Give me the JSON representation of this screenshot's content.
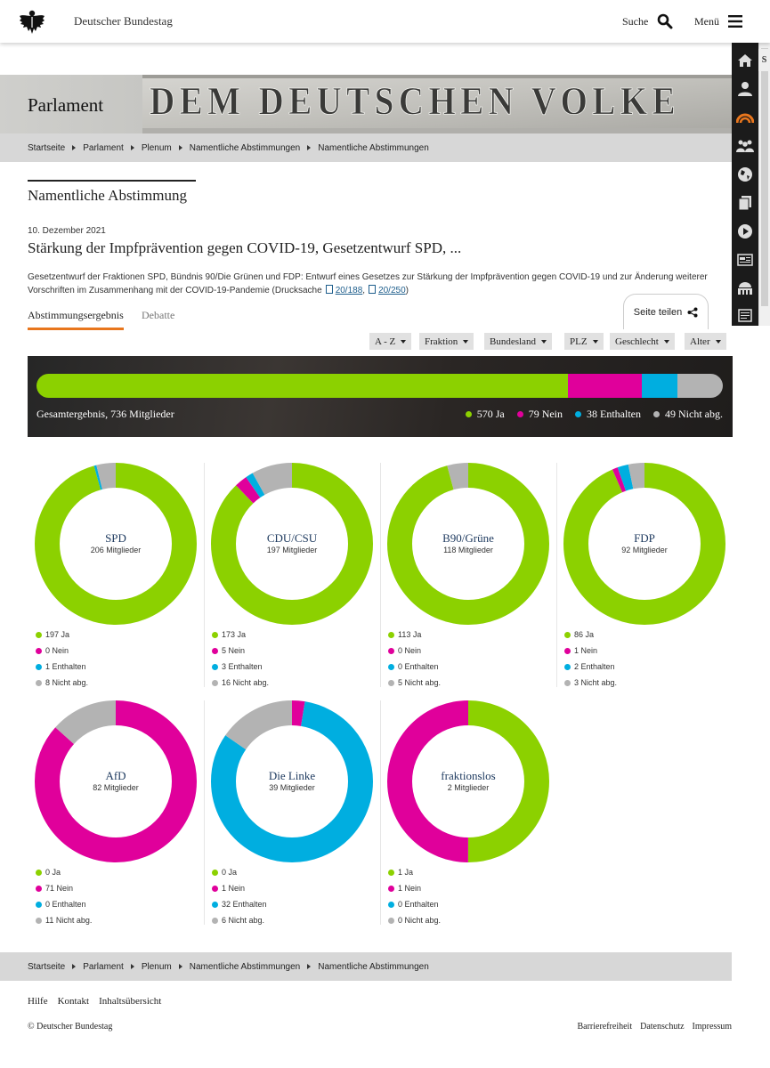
{
  "header": {
    "site_name": "Deutscher Bundestag",
    "search_label": "Suche",
    "menu_label": "Menü"
  },
  "side_tools": [
    "home-icon",
    "person-icon",
    "plenary-icon",
    "group-icon",
    "globe-icon",
    "documents-icon",
    "play-icon",
    "media-icon",
    "building-icon",
    "text-icon"
  ],
  "side_peek": "S",
  "banner": {
    "title": "Parlament",
    "inscription": "DEM DEUTSCHEN VOLKE"
  },
  "breadcrumb": [
    "Startseite",
    "Parlament",
    "Plenum",
    "Namentliche Abstimmungen",
    "Namentliche Abstimmungen"
  ],
  "section_title": "Namentliche Abstimmung",
  "vote": {
    "date": "10. Dezember 2021",
    "title": "Stärkung der Impfprävention gegen COVID-19, Gesetzentwurf SPD, ...",
    "description": "Gesetzentwurf der Fraktionen SPD, Bündnis 90/Die Grünen und FDP: Entwurf eines Gesetzes zur Stärkung der Impfprävention gegen COVID-19 und zur Änderung weiterer Vorschriften im Zusammenhang mit der COVID-19-Pandemie (Drucksache",
    "doc1": "20/188",
    "doc_sep": ",",
    "doc2": "20/250",
    "desc_end": ")"
  },
  "tabs": {
    "result": "Abstimmungsergebnis",
    "debate": "Debatte",
    "share": "Seite teilen"
  },
  "filters": [
    "A - Z",
    "Fraktion",
    "Bundesland",
    "PLZ",
    "Geschlecht",
    "Alter"
  ],
  "colors": {
    "ja": "#8cd100",
    "nein": "#e0009b",
    "enthalten": "#00aee0",
    "nicht": "#b3b3b3"
  },
  "overall": {
    "label": "Gesamtergebnis, 736 Mitglieder",
    "ja": 570,
    "nein": 79,
    "enthalten": 38,
    "nicht": 49,
    "legend": [
      "570 Ja",
      "79 Nein",
      "38 Enthalten",
      "49 Nicht abg."
    ]
  },
  "parties": [
    {
      "name": "SPD",
      "members": "206 Mitglieder",
      "ja": 197,
      "nein": 0,
      "enthalten": 1,
      "nicht": 8,
      "labels": [
        "197 Ja",
        "0 Nein",
        "1 Enthalten",
        "8 Nicht abg."
      ]
    },
    {
      "name": "CDU/CSU",
      "members": "197 Mitglieder",
      "ja": 173,
      "nein": 5,
      "enthalten": 3,
      "nicht": 16,
      "labels": [
        "173 Ja",
        "5 Nein",
        "3 Enthalten",
        "16 Nicht abg."
      ]
    },
    {
      "name": "B90/Grüne",
      "members": "118 Mitglieder",
      "ja": 113,
      "nein": 0,
      "enthalten": 0,
      "nicht": 5,
      "labels": [
        "113 Ja",
        "0 Nein",
        "0 Enthalten",
        "5 Nicht abg."
      ]
    },
    {
      "name": "FDP",
      "members": "92 Mitglieder",
      "ja": 86,
      "nein": 1,
      "enthalten": 2,
      "nicht": 3,
      "labels": [
        "86 Ja",
        "1 Nein",
        "2 Enthalten",
        "3 Nicht abg."
      ]
    },
    {
      "name": "AfD",
      "members": "82 Mitglieder",
      "ja": 0,
      "nein": 71,
      "enthalten": 0,
      "nicht": 11,
      "labels": [
        "0 Ja",
        "71 Nein",
        "0 Enthalten",
        "11 Nicht abg."
      ]
    },
    {
      "name": "Die Linke",
      "members": "39 Mitglieder",
      "ja": 0,
      "nein": 1,
      "enthalten": 32,
      "nicht": 6,
      "labels": [
        "0 Ja",
        "1 Nein",
        "32 Enthalten",
        "6 Nicht abg."
      ]
    },
    {
      "name": "fraktionslos",
      "members": "2 Mitglieder",
      "ja": 1,
      "nein": 1,
      "enthalten": 0,
      "nicht": 0,
      "labels": [
        "1 Ja",
        "1 Nein",
        "0 Enthalten",
        "0 Nicht abg."
      ]
    }
  ],
  "footer": {
    "links": [
      "Hilfe",
      "Kontakt",
      "Inhaltsübersicht"
    ],
    "copyright": "© Deutscher Bundestag",
    "legal": [
      "Barrierefreiheit",
      "Datenschutz",
      "Impressum"
    ]
  }
}
